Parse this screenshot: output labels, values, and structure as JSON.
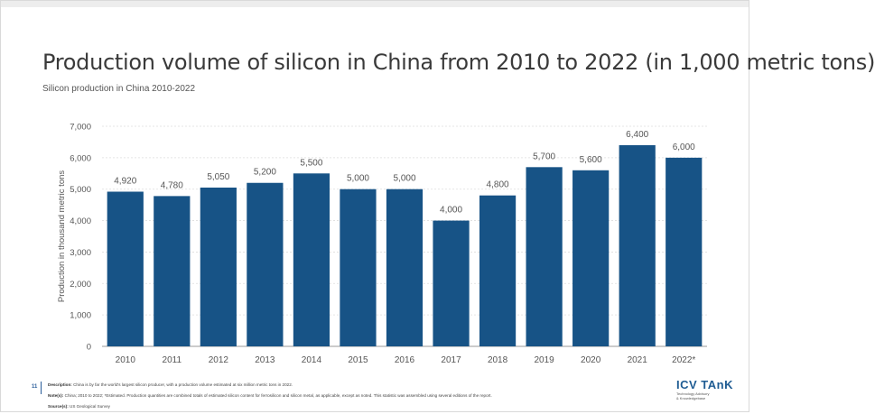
{
  "slide": {
    "title": "Production volume of silicon in China from 2010 to 2022 (in 1,000 metric tons)",
    "subtitle": "Silicon production in China 2010-2022",
    "page_number": "11"
  },
  "footer": {
    "description_label": "Description:",
    "description_text": "China is by far the world's largest silicon producer, with a production volume estimated at six million metric tons in 2022.",
    "notes_label": "Note(s):",
    "notes_text": "China; 2010 to 2022; *Estimated. Production quantities are combined totals of estimated silicon content for ferrosilicon and silicon metal, as applicable, except as noted. This statistic was assembled using several editions of the report.",
    "sources_label": "Source(s):",
    "sources_text": "US Geological Survey"
  },
  "logo": {
    "name": "ICV TAnK",
    "tagline_1": "Technology Advisory",
    "tagline_2": "& Knowledgebase"
  },
  "colors": {
    "bar": "#175386",
    "grid": "#dddddd",
    "axis_text": "#555555"
  },
  "chart_data": {
    "type": "bar",
    "title": "",
    "xlabel": "",
    "ylabel": "Production in thousand metric tons",
    "categories": [
      "2010",
      "2011",
      "2012",
      "2013",
      "2014",
      "2015",
      "2016",
      "2017",
      "2018",
      "2019",
      "2020",
      "2021",
      "2022*"
    ],
    "values": [
      4920,
      4780,
      5050,
      5200,
      5500,
      5000,
      5000,
      4000,
      4800,
      5700,
      5600,
      6400,
      6000
    ],
    "value_labels": [
      "4,920",
      "4,780",
      "5,050",
      "5,200",
      "5,500",
      "5,000",
      "5,000",
      "4,000",
      "4,800",
      "5,700",
      "5,600",
      "6,400",
      "6,000"
    ],
    "yticks": [
      0,
      1000,
      2000,
      3000,
      4000,
      5000,
      6000,
      7000
    ],
    "ytick_labels": [
      "0",
      "1,000",
      "2,000",
      "3,000",
      "4,000",
      "5,000",
      "6,000",
      "7,000"
    ],
    "ylim": [
      0,
      7000
    ],
    "grid": true,
    "legend": "none"
  }
}
